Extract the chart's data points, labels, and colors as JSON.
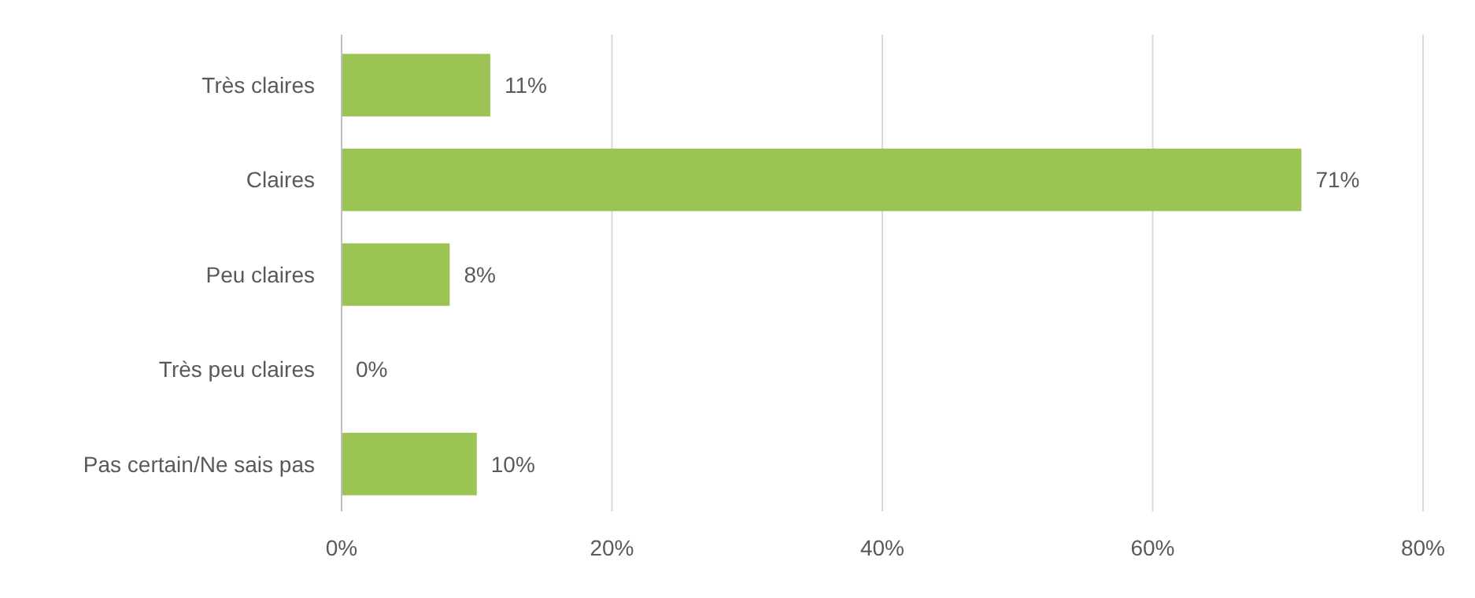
{
  "chart_data": {
    "type": "bar",
    "orientation": "horizontal",
    "categories": [
      "Très claires",
      "Claires",
      "Peu claires",
      "Très peu claires",
      "Pas certain/Ne sais pas"
    ],
    "values": [
      11,
      71,
      8,
      0,
      10
    ],
    "color": "#9bc455",
    "value_labels": [
      "11%",
      "71%",
      "8%",
      "0%",
      "10%"
    ],
    "xlim": [
      0,
      80
    ],
    "xticks": [
      {
        "value": 0,
        "label": "0%"
      },
      {
        "value": 20,
        "label": "20%"
      },
      {
        "value": 40,
        "label": "40%"
      },
      {
        "value": 60,
        "label": "60%"
      },
      {
        "value": 80,
        "label": "80%"
      }
    ],
    "grid": "x"
  }
}
